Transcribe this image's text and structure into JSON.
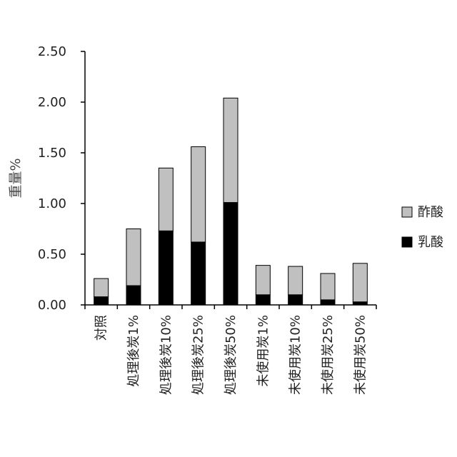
{
  "chart_data": {
    "type": "bar",
    "stacked": true,
    "title": "",
    "xlabel": "",
    "ylabel": "重量%",
    "ylim": [
      0,
      2.5
    ],
    "yticks": [
      "0.00",
      "0.50",
      "1.00",
      "1.50",
      "2.00",
      "2.50"
    ],
    "grid": false,
    "legend_position": "right",
    "categories": [
      "対照",
      "処理後炭1%",
      "処理後炭10%",
      "処理後炭25%",
      "処理後炭50%",
      "未使用炭1%",
      "未使用炭10%",
      "未使用炭25%",
      "未使用炭50%"
    ],
    "series": [
      {
        "name": "乳酸",
        "color": "#000000",
        "values": [
          0.08,
          0.19,
          0.73,
          0.62,
          1.01,
          0.1,
          0.1,
          0.05,
          0.03
        ]
      },
      {
        "name": "酢酸",
        "color": "#c0c0c0",
        "values": [
          0.18,
          0.56,
          0.62,
          0.94,
          1.03,
          0.29,
          0.28,
          0.26,
          0.38
        ]
      }
    ],
    "legend_order": [
      "酢酸",
      "乳酸"
    ]
  }
}
